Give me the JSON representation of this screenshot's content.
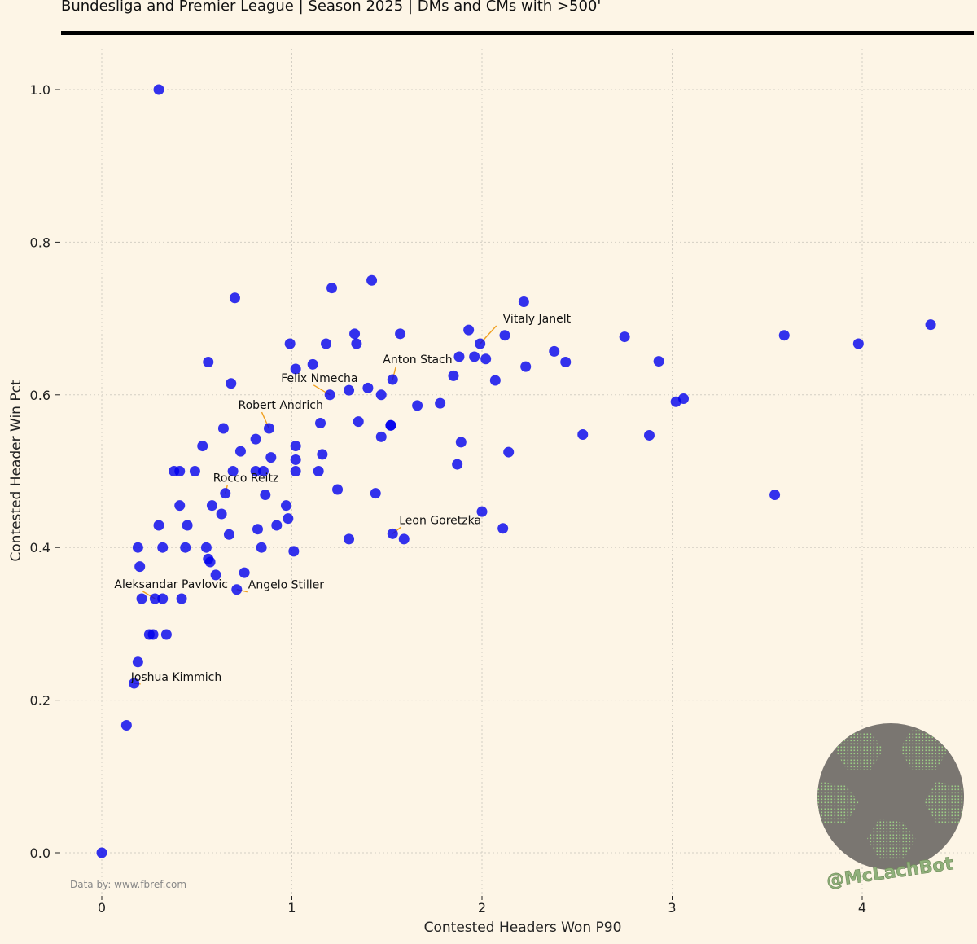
{
  "title": "Bundesliga and Premier League | Season 2025 | DMs and CMs with >500'",
  "source": "Data by: www.fbref.com",
  "watermark": "@McLachBot",
  "colors": {
    "background": "#fdf5e6",
    "points": "#0000ee",
    "annotation_line": "#f0a020",
    "grid": "#d4cfc4",
    "logo_fill": "#7a7671",
    "logo_pattern": "#9ccf86"
  },
  "logo": {
    "name": "soccer-ball-logo"
  },
  "chart_data": {
    "type": "scatter",
    "xlabel": "Contested Headers Won P90",
    "ylabel": "Contested Header Win Pct",
    "xlim": [
      -0.2,
      4.65
    ],
    "ylim": [
      -0.05,
      1.05
    ],
    "xticks": [
      0,
      1,
      2,
      3,
      4
    ],
    "yticks": [
      0.0,
      0.2,
      0.4,
      0.6,
      0.8,
      1.0
    ],
    "xtick_labels": [
      "0",
      "1",
      "2",
      "3",
      "4"
    ],
    "ytick_labels": [
      "0.0",
      "0.2",
      "0.4",
      "0.6",
      "0.8",
      "1.0"
    ],
    "grid": true,
    "points": [
      [
        0.0,
        0.0
      ],
      [
        0.3,
        1.0
      ],
      [
        0.13,
        0.167
      ],
      [
        0.17,
        0.222
      ],
      [
        0.19,
        0.25
      ],
      [
        0.19,
        0.4
      ],
      [
        0.2,
        0.375
      ],
      [
        0.21,
        0.333
      ],
      [
        0.25,
        0.286
      ],
      [
        0.27,
        0.286
      ],
      [
        0.28,
        0.333
      ],
      [
        0.3,
        0.429
      ],
      [
        0.32,
        0.333
      ],
      [
        0.32,
        0.4
      ],
      [
        0.34,
        0.286
      ],
      [
        0.38,
        0.5
      ],
      [
        0.41,
        0.455
      ],
      [
        0.41,
        0.5
      ],
      [
        0.42,
        0.333
      ],
      [
        0.44,
        0.4
      ],
      [
        0.45,
        0.429
      ],
      [
        0.49,
        0.5
      ],
      [
        0.53,
        0.533
      ],
      [
        0.55,
        0.4
      ],
      [
        0.56,
        0.385
      ],
      [
        0.56,
        0.643
      ],
      [
        0.57,
        0.381
      ],
      [
        0.58,
        0.455
      ],
      [
        0.6,
        0.364
      ],
      [
        0.63,
        0.444
      ],
      [
        0.64,
        0.556
      ],
      [
        0.65,
        0.471
      ],
      [
        0.67,
        0.417
      ],
      [
        0.68,
        0.615
      ],
      [
        0.69,
        0.5
      ],
      [
        0.7,
        0.727
      ],
      [
        0.71,
        0.345
      ],
      [
        0.73,
        0.526
      ],
      [
        0.75,
        0.367
      ],
      [
        0.81,
        0.542
      ],
      [
        0.81,
        0.5
      ],
      [
        0.82,
        0.424
      ],
      [
        0.84,
        0.4
      ],
      [
        0.85,
        0.5
      ],
      [
        0.86,
        0.469
      ],
      [
        0.88,
        0.556
      ],
      [
        0.89,
        0.518
      ],
      [
        0.92,
        0.429
      ],
      [
        0.97,
        0.455
      ],
      [
        0.98,
        0.438
      ],
      [
        0.99,
        0.667
      ],
      [
        1.01,
        0.395
      ],
      [
        1.02,
        0.533
      ],
      [
        1.02,
        0.515
      ],
      [
        1.02,
        0.5
      ],
      [
        1.02,
        0.634
      ],
      [
        1.11,
        0.64
      ],
      [
        1.14,
        0.5
      ],
      [
        1.15,
        0.563
      ],
      [
        1.16,
        0.522
      ],
      [
        1.18,
        0.667
      ],
      [
        1.2,
        0.6
      ],
      [
        1.21,
        0.74
      ],
      [
        1.24,
        0.476
      ],
      [
        1.3,
        0.606
      ],
      [
        1.3,
        0.411
      ],
      [
        1.33,
        0.68
      ],
      [
        1.34,
        0.667
      ],
      [
        1.35,
        0.565
      ],
      [
        1.4,
        0.609
      ],
      [
        1.42,
        0.75
      ],
      [
        1.44,
        0.471
      ],
      [
        1.47,
        0.6
      ],
      [
        1.47,
        0.545
      ],
      [
        1.52,
        0.56
      ],
      [
        1.52,
        0.56
      ],
      [
        1.53,
        0.62
      ],
      [
        1.53,
        0.418
      ],
      [
        1.57,
        0.68
      ],
      [
        1.59,
        0.411
      ],
      [
        1.66,
        0.586
      ],
      [
        1.78,
        0.589
      ],
      [
        1.85,
        0.625
      ],
      [
        1.87,
        0.509
      ],
      [
        1.88,
        0.65
      ],
      [
        1.89,
        0.538
      ],
      [
        1.93,
        0.685
      ],
      [
        1.96,
        0.65
      ],
      [
        1.99,
        0.667
      ],
      [
        2.0,
        0.447
      ],
      [
        2.02,
        0.647
      ],
      [
        2.07,
        0.619
      ],
      [
        2.11,
        0.425
      ],
      [
        2.12,
        0.678
      ],
      [
        2.14,
        0.525
      ],
      [
        2.22,
        0.722
      ],
      [
        2.23,
        0.637
      ],
      [
        2.38,
        0.657
      ],
      [
        2.44,
        0.643
      ],
      [
        2.53,
        0.548
      ],
      [
        2.75,
        0.676
      ],
      [
        2.88,
        0.547
      ],
      [
        2.93,
        0.644
      ],
      [
        3.02,
        0.591
      ],
      [
        3.06,
        0.595
      ],
      [
        3.54,
        0.469
      ],
      [
        3.59,
        0.678
      ],
      [
        3.98,
        0.667
      ],
      [
        4.36,
        0.692
      ]
    ],
    "annotations": [
      {
        "label": "Vitaly Janelt",
        "x": 1.99,
        "y": 0.667
      },
      {
        "label": "Anton Stach",
        "x": 1.53,
        "y": 0.62
      },
      {
        "label": "Felix Nmecha",
        "x": 1.2,
        "y": 0.6
      },
      {
        "label": "Robert Andrich",
        "x": 0.88,
        "y": 0.556
      },
      {
        "label": "Rocco Reitz",
        "x": 0.65,
        "y": 0.471
      },
      {
        "label": "Leon Goretzka",
        "x": 1.53,
        "y": 0.418
      },
      {
        "label": "Aleksandar Pavlovic",
        "x": 0.28,
        "y": 0.333
      },
      {
        "label": "Angelo Stiller",
        "x": 0.71,
        "y": 0.345
      },
      {
        "label": "Joshua Kimmich",
        "x": 0.17,
        "y": 0.222
      }
    ]
  }
}
